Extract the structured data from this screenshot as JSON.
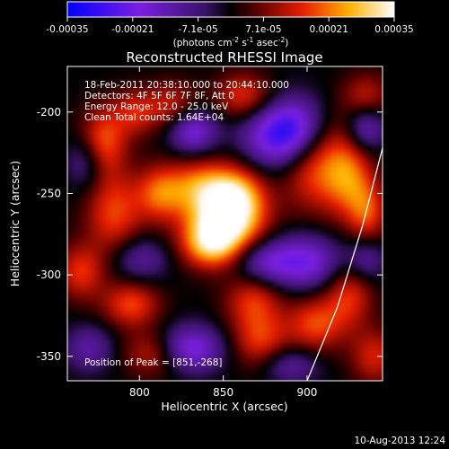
{
  "colorbar": {
    "ticks": [
      "-0.00035",
      "-0.00021",
      "-7.1e-05",
      "7.1e-05",
      "0.00021",
      "0.00035"
    ],
    "units_main": "(photons cm",
    "units_sup1": "-2",
    "units_mid": " s",
    "units_sup2": "-1",
    "units_tail": " asec",
    "units_sup3": "-2",
    "units_close": ")",
    "range": [
      -0.00035,
      0.00035
    ]
  },
  "chart_data": {
    "type": "heatmap",
    "title": "Reconstructed RHESSI Image",
    "xlabel": "Heliocentric X (arcsec)",
    "ylabel": "Heliocentric Y (arcsec)",
    "xlim": [
      757,
      945
    ],
    "ylim": [
      -365,
      -172
    ],
    "x_ticks": [
      800,
      850,
      900
    ],
    "y_ticks": [
      -200,
      -250,
      -300,
      -350
    ],
    "info_lines": [
      "18-Feb-2011 20:38:10.000 to 20:44:10.000",
      "Detectors: 4F 5F 6F 7F 8F, Att 0",
      "Energy Range: 12.0 - 25.0 keV",
      "Clean     Total counts: 1.64E+04"
    ],
    "peak_label": "Position of Peak = [851,-268]",
    "peak": [
      851,
      -268
    ],
    "limb_curve": [
      [
        900,
        -365
      ],
      [
        918,
        -320
      ],
      [
        933,
        -270
      ],
      [
        945,
        -222
      ]
    ],
    "sources": [
      {
        "x": 851,
        "y": -268,
        "amp": 1.0,
        "w": 16,
        "h": 14
      },
      {
        "x": 858,
        "y": -250,
        "amp": 0.6,
        "w": 12,
        "h": 12
      },
      {
        "x": 842,
        "y": -282,
        "amp": 0.55,
        "w": 12,
        "h": 10
      },
      {
        "x": 836,
        "y": -245,
        "amp": 0.55,
        "w": 14,
        "h": 12
      },
      {
        "x": 812,
        "y": -250,
        "amp": 0.5,
        "w": 10,
        "h": 12
      },
      {
        "x": 785,
        "y": -262,
        "amp": 0.5,
        "w": 12,
        "h": 18
      },
      {
        "x": 778,
        "y": -218,
        "amp": 0.55,
        "w": 10,
        "h": 14
      },
      {
        "x": 798,
        "y": -200,
        "amp": 0.4,
        "w": 10,
        "h": 10
      },
      {
        "x": 820,
        "y": -195,
        "amp": 0.35,
        "w": 10,
        "h": 10
      },
      {
        "x": 862,
        "y": -190,
        "amp": 0.45,
        "w": 12,
        "h": 10
      },
      {
        "x": 905,
        "y": -232,
        "amp": 0.55,
        "w": 14,
        "h": 20
      },
      {
        "x": 925,
        "y": -240,
        "amp": 0.5,
        "w": 10,
        "h": 18
      },
      {
        "x": 936,
        "y": -262,
        "amp": 0.45,
        "w": 8,
        "h": 14
      },
      {
        "x": 765,
        "y": -298,
        "amp": 0.45,
        "w": 10,
        "h": 12
      },
      {
        "x": 795,
        "y": -318,
        "amp": 0.5,
        "w": 12,
        "h": 10
      },
      {
        "x": 808,
        "y": -348,
        "amp": 0.4,
        "w": 12,
        "h": 10
      },
      {
        "x": 868,
        "y": -315,
        "amp": 0.45,
        "w": 12,
        "h": 12
      },
      {
        "x": 872,
        "y": -340,
        "amp": 0.45,
        "w": 12,
        "h": 12
      },
      {
        "x": 905,
        "y": -330,
        "amp": 0.5,
        "w": 12,
        "h": 12
      },
      {
        "x": 925,
        "y": -312,
        "amp": 0.45,
        "w": 10,
        "h": 14
      },
      {
        "x": 940,
        "y": -350,
        "amp": 0.4,
        "w": 10,
        "h": 12
      },
      {
        "x": 935,
        "y": -190,
        "amp": 0.35,
        "w": 10,
        "h": 10
      },
      {
        "x": 832,
        "y": -212,
        "amp": -0.55,
        "w": 10,
        "h": 10
      },
      {
        "x": 880,
        "y": -215,
        "amp": -0.6,
        "w": 14,
        "h": 14
      },
      {
        "x": 895,
        "y": -210,
        "amp": -0.55,
        "w": 12,
        "h": 14
      },
      {
        "x": 898,
        "y": -292,
        "amp": -0.6,
        "w": 16,
        "h": 12
      },
      {
        "x": 872,
        "y": -292,
        "amp": -0.4,
        "w": 12,
        "h": 10
      },
      {
        "x": 830,
        "y": -345,
        "amp": -0.6,
        "w": 14,
        "h": 10
      },
      {
        "x": 800,
        "y": -290,
        "amp": -0.35,
        "w": 12,
        "h": 10
      },
      {
        "x": 768,
        "y": -230,
        "amp": -0.35,
        "w": 8,
        "h": 12
      },
      {
        "x": 935,
        "y": -210,
        "amp": -0.45,
        "w": 8,
        "h": 10
      },
      {
        "x": 935,
        "y": -290,
        "amp": -0.35,
        "w": 8,
        "h": 10
      },
      {
        "x": 890,
        "y": -355,
        "amp": -0.35,
        "w": 12,
        "h": 8
      },
      {
        "x": 770,
        "y": -345,
        "amp": -0.35,
        "w": 10,
        "h": 10
      }
    ]
  },
  "footer": {
    "timestamp": "10-Aug-2013 12:24"
  }
}
